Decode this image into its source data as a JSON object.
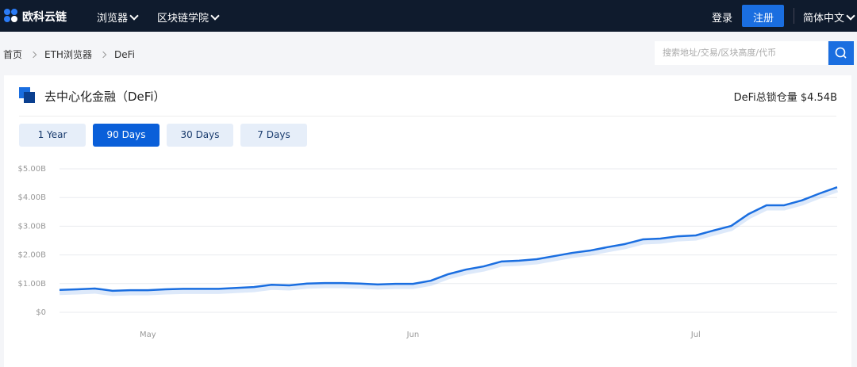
{
  "nav": {
    "logo": "欧科云链",
    "menu": [
      "浏览器",
      "区块链学院"
    ],
    "login": "登录",
    "register": "注册",
    "language": "简体中文"
  },
  "breadcrumb": [
    "首页",
    "ETH浏览器",
    "DeFi"
  ],
  "search": {
    "placeholder": "搜索地址/交易/区块高度/代币"
  },
  "panel": {
    "title": "去中心化金融（DeFi）",
    "total": "DeFi总锁仓量 $4.54B",
    "ranges": [
      "1 Year",
      "90 Days",
      "30 Days",
      "7 Days"
    ]
  },
  "chart_data": {
    "type": "line",
    "color": "#1a6ee0",
    "grid": true,
    "categories": [
      null,
      null,
      null,
      null,
      null,
      "May",
      null,
      null,
      null,
      null,
      null,
      null,
      null,
      null,
      null,
      null,
      null,
      null,
      null,
      null,
      "Jun",
      null,
      null,
      null,
      null,
      null,
      null,
      null,
      null,
      null,
      null,
      null,
      null,
      null,
      null,
      null,
      "Jul",
      null,
      null,
      null,
      null,
      null,
      null,
      null,
      null
    ],
    "values": [
      0.78,
      0.8,
      0.83,
      0.75,
      0.77,
      0.77,
      0.8,
      0.82,
      0.82,
      0.82,
      0.85,
      0.88,
      0.96,
      0.94,
      1.0,
      1.02,
      1.02,
      1.0,
      0.97,
      0.99,
      0.99,
      1.1,
      1.33,
      1.49,
      1.6,
      1.77,
      1.8,
      1.85,
      1.96,
      2.07,
      2.15,
      2.27,
      2.38,
      2.54,
      2.57,
      2.65,
      2.68,
      2.85,
      3.01,
      3.43,
      3.73,
      3.73,
      3.9,
      4.14,
      4.36
    ],
    "ylim": [
      0,
      5
    ],
    "yticks": [
      {
        "value": 0,
        "label": "$0"
      },
      {
        "value": 1,
        "label": "$1.00B"
      },
      {
        "value": 2,
        "label": "$2.00B"
      },
      {
        "value": 3,
        "label": "$3.00B"
      },
      {
        "value": 4,
        "label": "$4.00B"
      },
      {
        "value": 5,
        "label": "$5.00B"
      }
    ]
  }
}
